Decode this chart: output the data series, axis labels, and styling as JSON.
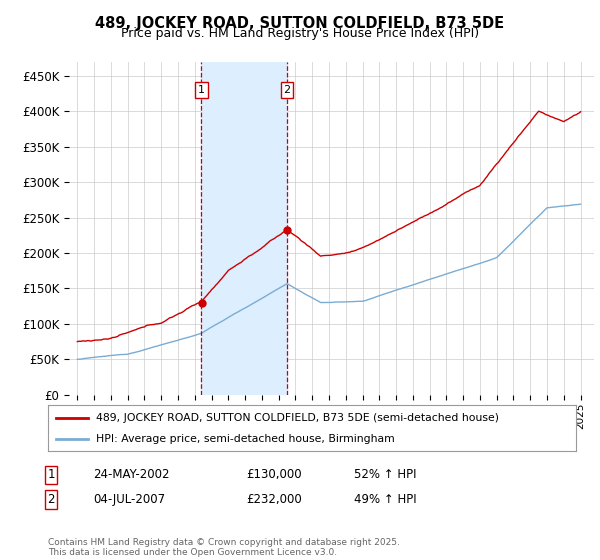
{
  "title": "489, JOCKEY ROAD, SUTTON COLDFIELD, B73 5DE",
  "subtitle": "Price paid vs. HM Land Registry's House Price Index (HPI)",
  "legend_line1": "489, JOCKEY ROAD, SUTTON COLDFIELD, B73 5DE (semi-detached house)",
  "legend_line2": "HPI: Average price, semi-detached house, Birmingham",
  "footer": "Contains HM Land Registry data © Crown copyright and database right 2025.\nThis data is licensed under the Open Government Licence v3.0.",
  "sale1_date": "24-MAY-2002",
  "sale1_price": "£130,000",
  "sale1_hpi": "52% ↑ HPI",
  "sale2_date": "04-JUL-2007",
  "sale2_price": "£232,000",
  "sale2_hpi": "49% ↑ HPI",
  "sale1_x": 2002.39,
  "sale2_x": 2007.5,
  "sale1_price_val": 130000,
  "sale2_price_val": 232000,
  "red_color": "#cc0000",
  "blue_color": "#7aacd4",
  "shade_color": "#ddeeff",
  "grid_color": "#cccccc",
  "background_color": "#ffffff",
  "ylim": [
    0,
    470000
  ],
  "xlim_start": 1994.5,
  "xlim_end": 2025.8
}
